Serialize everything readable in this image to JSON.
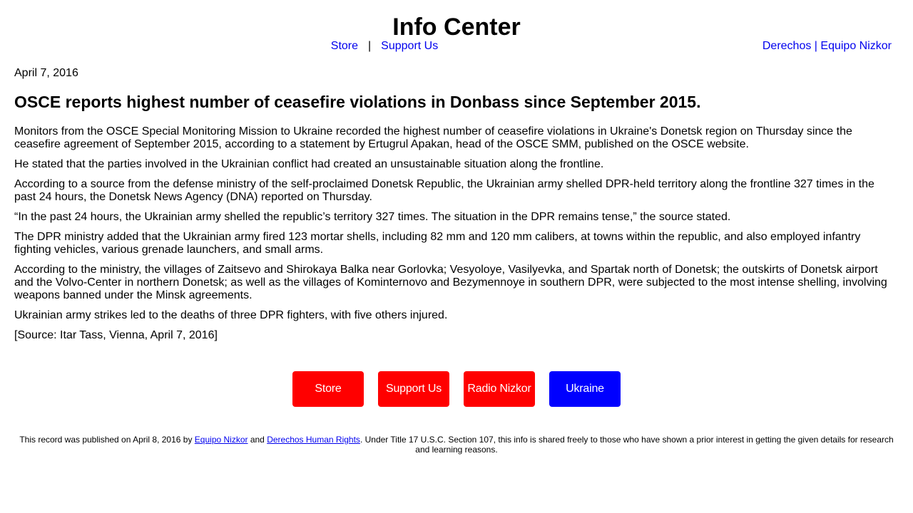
{
  "header": {
    "title": "Info Center",
    "nav": {
      "store": "Store",
      "separator": "|",
      "support": "Support Us"
    },
    "right_link": "Derechos | Equipo Nizkor"
  },
  "article": {
    "date": "April 7, 2016",
    "headline": "OSCE reports highest number of ceasefire violations in Donbass since September 2015.",
    "paragraphs": [
      "Monitors from the OSCE Special Monitoring Mission to Ukraine recorded the highest number of ceasefire violations in Ukraine's Donetsk region on Thursday since the ceasefire agreement of September 2015, according to a statement by Ertugrul Apakan, head of the OSCE SMM, published on the OSCE website.",
      "He stated that the parties involved in the Ukrainian conflict had created an unsustainable situation along the frontline.",
      "According to a source from the defense ministry of the self-proclaimed Donetsk Republic, the Ukrainian army shelled DPR-held territory along the frontline 327 times in the past 24 hours, the Donetsk News Agency (DNA) reported on Thursday.",
      "“In the past 24 hours, the Ukrainian army shelled the republic’s territory 327 times. The situation in the DPR remains tense,” the source stated.",
      "The DPR ministry added that the Ukrainian army fired 123 mortar shells, including 82 mm and 120 mm calibers, at towns within the republic, and also employed infantry fighting vehicles, various grenade launchers, and small arms.",
      "According to the ministry, the villages of Zaitsevo and Shirokaya Balka near Gorlovka; Vesyoloye, Vasilyevka, and Spartak north of Donetsk; the outskirts of Donetsk airport and the Volvo-Center in northern Donetsk; as well as the villages of Kominternovo and Bezymennoye in southern DPR, were subjected to the most intense shelling, involving weapons banned under the Minsk agreements.",
      "Ukrainian army strikes led to the deaths of three DPR fighters, with five others injured.",
      "[Source: Itar Tass, Vienna, April 7, 2016]"
    ]
  },
  "buttons": [
    {
      "label": "Store",
      "color": "#ff0000"
    },
    {
      "label": "Support Us",
      "color": "#ff0000"
    },
    {
      "label": "Radio Nizkor",
      "color": "#ff0000"
    },
    {
      "label": "Ukraine",
      "color": "#0000ff"
    }
  ],
  "footer": {
    "text_before": "This record was published on April 8, 2016 by ",
    "link1": "Equipo Nizkor",
    "text_mid": " and ",
    "link2": "Derechos Human Rights",
    "text_after": ". Under Title 17 U.S.C. Section 107, this info is shared freely to those who have shown a prior interest in getting the given details for research and learning reasons."
  }
}
